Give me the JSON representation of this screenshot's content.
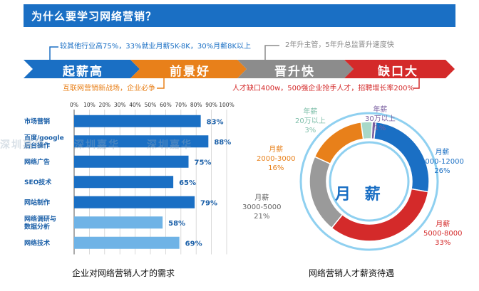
{
  "header": {
    "title": "为什么要学习网络营销？"
  },
  "top_callouts": [
    {
      "text": "较其他行业高75%，33%就业月薪5K-8K，30%月薪8K以上",
      "color": "#1a6fc4"
    },
    {
      "text": "2年升主管，5年升总监晋升速度快",
      "color": "#888888"
    }
  ],
  "bottom_callouts": [
    {
      "text": "互联网营销新战场，企业必争",
      "color": "#e8801a"
    },
    {
      "text": "人才缺口400w，500强企业抢手人才，招聘增长率200%",
      "color": "#d42a2a"
    }
  ],
  "chevrons": [
    {
      "label": "起薪高",
      "color": "#1a6fc4"
    },
    {
      "label": "前景好",
      "color": "#e8801a"
    },
    {
      "label": "晋升快",
      "color": "#8c8c8c"
    },
    {
      "label": "缺口大",
      "color": "#d42a2a"
    }
  ],
  "watermarks": [
    "深圳嘉华",
    "深圳嘉华",
    "深圳嘉华"
  ],
  "chart_data": [
    {
      "type": "bar",
      "orientation": "horizontal",
      "title": "",
      "caption": "企业对网络营销人才的需求",
      "categories": [
        "市场营销",
        "百度/google后台操作",
        "网络广告",
        "SEO技术",
        "网站制作",
        "网络调研与数据分析",
        "网络技术"
      ],
      "category_lines": [
        [
          "市场营销"
        ],
        [
          "百度/google",
          "后台操作"
        ],
        [
          "网络广告"
        ],
        [
          "SEO技术"
        ],
        [
          "网站制作"
        ],
        [
          "网络调研与",
          "数据分析"
        ],
        [
          "网络技术"
        ]
      ],
      "values": [
        83,
        88,
        75,
        65,
        79,
        58,
        69
      ],
      "value_labels": [
        "83%",
        "88%",
        "75%",
        "65%",
        "79%",
        "58%",
        "69%"
      ],
      "bar_colors": [
        "#1a6fc4",
        "#1a6fc4",
        "#1a6fc4",
        "#1a6fc4",
        "#1a6fc4",
        "#6fb3e6",
        "#6fb3e6"
      ],
      "xlim": [
        0,
        100
      ],
      "x_ticks": [
        "0%",
        "10%",
        "20%",
        "30%",
        "40%",
        "50%",
        "60%",
        "70%",
        "80%",
        "90%",
        "100%"
      ],
      "grid": true
    },
    {
      "type": "pie",
      "style": "donut",
      "caption": "网络营销人才薪资待遇",
      "center_label": "月 薪",
      "slices": [
        {
          "lines": [
            "年薪",
            "30万以上",
            "1%"
          ],
          "value": 1,
          "color": "#7a5fa0"
        },
        {
          "lines": [
            "月薪",
            "8000-12000",
            "26%"
          ],
          "value": 26,
          "color": "#1a6fc4"
        },
        {
          "lines": [
            "月薪",
            "5000-8000",
            "33%"
          ],
          "value": 33,
          "color": "#d42a2a"
        },
        {
          "lines": [
            "月薪",
            "3000-5000",
            "21%"
          ],
          "value": 21,
          "color": "#9a9a9a"
        },
        {
          "lines": [
            "月薪",
            "2000-3000",
            "16%"
          ],
          "value": 16,
          "color": "#e8801a"
        },
        {
          "lines": [
            "年薪",
            "20万以上",
            "3%"
          ],
          "value": 3,
          "color": "#a8d8c8"
        }
      ]
    }
  ]
}
